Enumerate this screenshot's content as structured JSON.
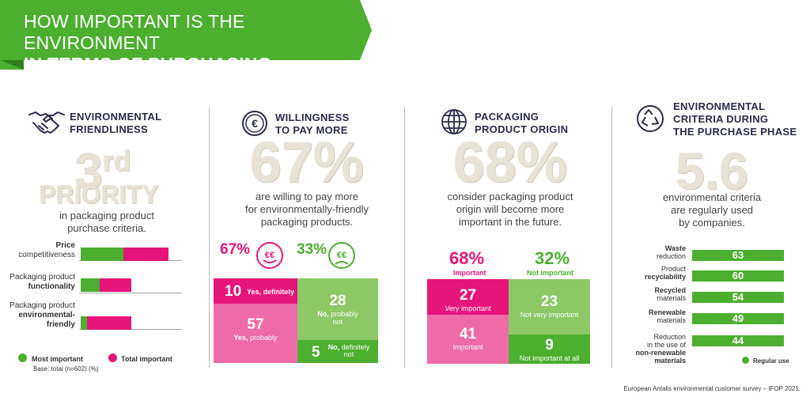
{
  "header": {
    "line1": "HOW IMPORTANT IS THE ENVIRONMENT",
    "line2": "IN TERMS OF PURCHASING CRITERIA?"
  },
  "colors": {
    "green": "#4caf2f",
    "pink": "#e5157a",
    "light_green": "#8cc866",
    "light_pink": "#ef6ba8"
  },
  "sections": {
    "environmental": {
      "title1": "ENVIRONMENTAL",
      "title2": "FRIENDLINESS",
      "icon": "handshake-icon",
      "big1": "3",
      "big1_sup": "rd",
      "big2": "PRIORITY",
      "desc1": "in packaging product",
      "desc2": "purchase criteria.",
      "bars": [
        {
          "label_a": "Price",
          "label_b": "competitiveness",
          "most": 0.3,
          "total": 0.6
        },
        {
          "label_a": "Packaging product",
          "label_b": "functionality",
          "most": 0.14,
          "total": 0.35
        },
        {
          "label_a": "Packaging product",
          "label_b": "environmental-",
          "label_c": "friendly",
          "most": 0.04,
          "total": 0.35
        }
      ],
      "legend_most": "Most important",
      "legend_total": "Total important",
      "base": "Base: total (n=602)  (%)"
    },
    "willingness": {
      "title1": "WILLINGNESS",
      "title2": "TO PAY MORE",
      "icon": "euro-coin-icon",
      "big": "67%",
      "desc1": "are willing to pay more",
      "desc2": "for environmentally-friendly",
      "desc3": "packaging products.",
      "yes_pct": "67%",
      "no_pct": "33%",
      "happy_face": "€€",
      "sad_face": "€€",
      "yes_def_n": "10",
      "yes_def_t": "Yes, definitely",
      "yes_prob_n": "57",
      "yes_prob_t1": "Yes,",
      "yes_prob_t2": "probably",
      "no_prob_n": "28",
      "no_prob_t1": "No,",
      "no_prob_t2": "probably",
      "no_prob_t3": "not",
      "no_def_n": "5",
      "no_def_t1": "No,",
      "no_def_t2": "definitely",
      "no_def_t3": "not"
    },
    "origin": {
      "title1": "PACKAGING",
      "title2": "PRODUCT ORIGIN",
      "icon": "globe-icon",
      "big": "68%",
      "desc1": "consider packaging product",
      "desc2": "origin will become more",
      "desc3": "important in the future.",
      "imp_pct": "68%",
      "imp_lbl": "Important",
      "not_pct": "32%",
      "not_lbl": "Not important",
      "very_n": "27",
      "very_t": "Very important",
      "imp_n": "41",
      "imp_t": "Important",
      "notvery_n": "23",
      "notvery_t": "Not very important",
      "notall_n": "9",
      "notall_t": "Not important at all"
    },
    "criteria": {
      "title1": "ENVIRONMENTAL",
      "title2": "CRITERIA DURING",
      "title3": "THE PURCHASE PHASE",
      "icon": "recycle-icon",
      "big": "5.6",
      "desc1": "environmental criteria",
      "desc2": "are regularly used",
      "desc3": "by companies.",
      "bars": [
        {
          "l1": "Waste",
          "l2": "reduction",
          "value": "63"
        },
        {
          "l1": "Product",
          "l2": "recyclability",
          "value": "60"
        },
        {
          "l1": "Recycled",
          "l2": "materials",
          "value": "54"
        },
        {
          "l1": "Renewable",
          "l2": "materials",
          "value": "49"
        },
        {
          "l1": "Reduction",
          "l2": "in the use of",
          "l3": "non-renewable",
          "l4": "materials",
          "value": "44"
        }
      ],
      "legend": "Regular use"
    }
  },
  "footer": "European Antalis environmental customer survey – IFOP 2021."
}
